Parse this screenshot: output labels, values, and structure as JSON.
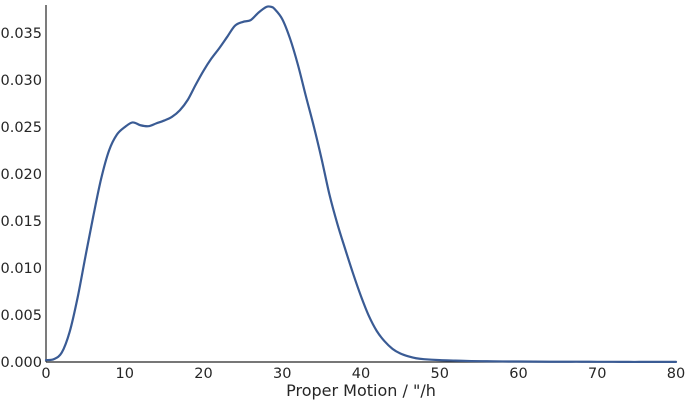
{
  "chart_data": {
    "type": "line",
    "title": "",
    "xlabel": "Proper Motion / \"/h",
    "ylabel": "",
    "xlim": [
      0,
      80
    ],
    "ylim": [
      0,
      0.038
    ],
    "grid": false,
    "legend": "none",
    "x_ticks": [
      0,
      10,
      20,
      30,
      40,
      50,
      60,
      70,
      80
    ],
    "x_tick_labels": [
      "0",
      "10",
      "20",
      "30",
      "40",
      "50",
      "60",
      "70",
      "80"
    ],
    "y_ticks": [
      0,
      0.005,
      0.01,
      0.015,
      0.02,
      0.025,
      0.03,
      0.035
    ],
    "y_tick_labels": [
      "0.000",
      "0.005",
      "0.010",
      "0.015",
      "0.020",
      "0.025",
      "0.030",
      "0.035"
    ],
    "series": [
      {
        "color": "#3a5b94",
        "x": [
          0,
          1,
          2,
          3,
          4,
          5,
          6,
          7,
          8,
          9,
          10,
          11,
          12,
          13,
          14,
          15,
          16,
          17,
          18,
          19,
          20,
          21,
          22,
          23,
          24,
          25,
          26,
          27,
          28,
          28.6,
          29,
          30,
          31,
          32,
          33,
          34,
          35,
          36,
          37,
          38,
          39,
          40,
          41,
          42,
          43,
          44,
          45,
          46,
          47,
          48,
          50,
          52,
          54,
          56,
          58,
          60,
          62,
          64,
          66,
          68,
          70,
          72,
          74,
          76,
          78,
          80
        ],
        "y": [
          0.0002,
          0.0003,
          0.001,
          0.0032,
          0.0068,
          0.0112,
          0.0155,
          0.0195,
          0.0225,
          0.0242,
          0.025,
          0.0255,
          0.0252,
          0.0251,
          0.0254,
          0.0257,
          0.0261,
          0.0268,
          0.0279,
          0.0295,
          0.031,
          0.0323,
          0.0334,
          0.0346,
          0.0358,
          0.0362,
          0.0364,
          0.0372,
          0.0378,
          0.0378,
          0.0376,
          0.0365,
          0.0344,
          0.0316,
          0.0283,
          0.0251,
          0.0216,
          0.0178,
          0.0147,
          0.012,
          0.0094,
          0.007,
          0.0049,
          0.0033,
          0.0022,
          0.0014,
          0.0009,
          0.0006,
          0.0004,
          0.0003,
          0.0002,
          0.00015,
          0.0001,
          8e-05,
          6e-05,
          5e-05,
          4e-05,
          3e-05,
          3e-05,
          3e-05,
          2e-05,
          2e-05,
          1e-05,
          1e-05,
          1e-05,
          1e-05
        ]
      }
    ]
  }
}
